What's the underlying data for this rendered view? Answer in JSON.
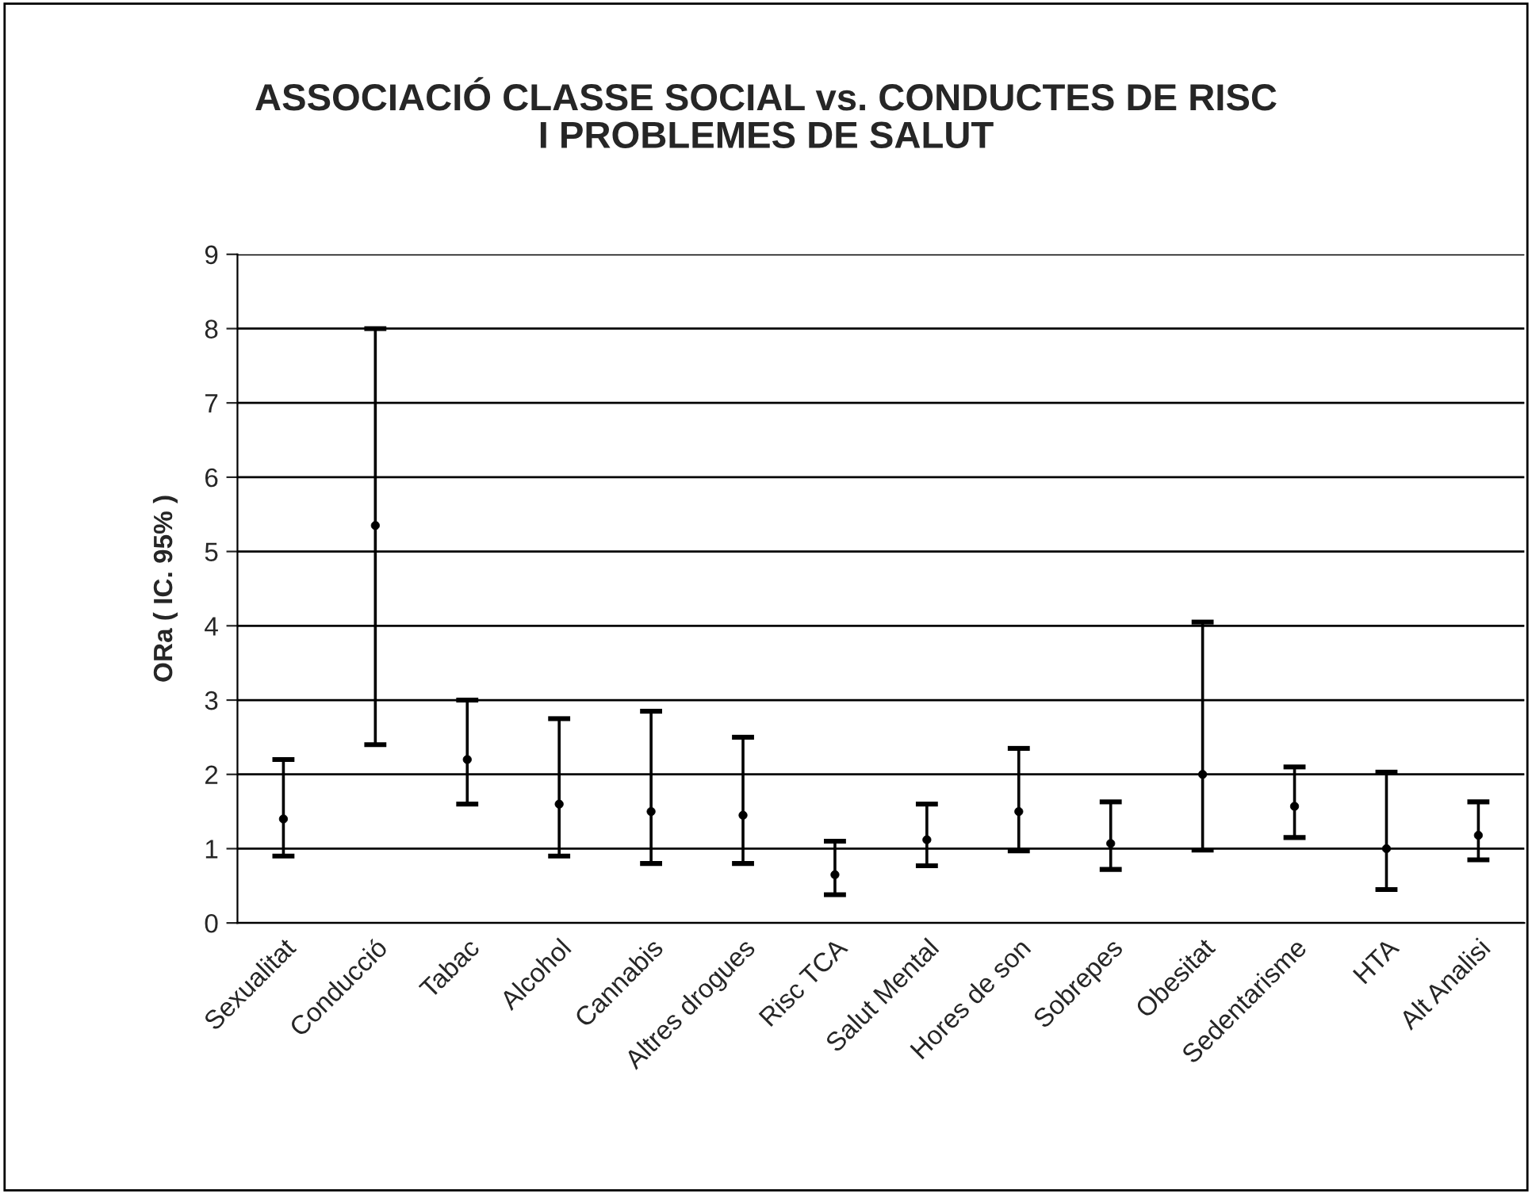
{
  "chart_data": {
    "type": "scatter",
    "title": "ASSOCIACIÓ CLASSE SOCIAL vs. CONDUCTES DE RISC\nI PROBLEMES DE SALUT",
    "ylabel": "ORa ( IC. 95% )",
    "categories": [
      "Sexualitat",
      "Conducció",
      "Tabac",
      "Alcohol",
      "Cannabis",
      "Altres drogues",
      "Risc TCA",
      "Salut Mental",
      "Hores de son",
      "Sobrepes",
      "Obesitat",
      "Sedentarisme",
      "HTA",
      "Alt Analisi"
    ],
    "series": [
      {
        "color": "#000000",
        "values": [
          1.4,
          5.35,
          2.2,
          1.6,
          1.5,
          1.45,
          0.65,
          1.12,
          1.5,
          1.07,
          2.0,
          1.57,
          1.0,
          1.18
        ],
        "errors": [
          [
            0.9,
            2.2
          ],
          [
            2.4,
            8.0
          ],
          [
            1.6,
            3.0
          ],
          [
            0.9,
            2.75
          ],
          [
            0.8,
            2.85
          ],
          [
            0.8,
            2.5
          ],
          [
            0.38,
            1.1
          ],
          [
            0.77,
            1.6
          ],
          [
            0.97,
            2.35
          ],
          [
            0.72,
            1.63
          ],
          [
            0.98,
            4.05
          ],
          [
            1.15,
            2.1
          ],
          [
            0.45,
            2.03
          ],
          [
            0.85,
            1.63
          ]
        ]
      }
    ],
    "ylim": [
      0,
      9
    ],
    "yticks": [
      0,
      1,
      2,
      3,
      4,
      5,
      6,
      7,
      8,
      9
    ],
    "grid": "y",
    "marker": "circle"
  }
}
